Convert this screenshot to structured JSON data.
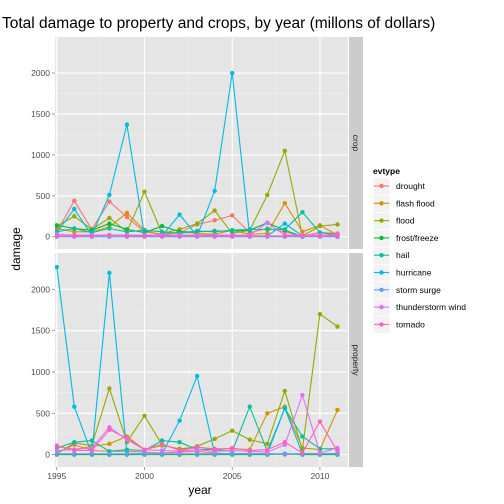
{
  "chart_data": {
    "type": "line",
    "title": "Total damage to property and crops, by year (millons of dollars)",
    "xlabel": "year",
    "ylabel": "damage",
    "legend_title": "evtype",
    "legend_position": "right",
    "grid": true,
    "facets": [
      "crop",
      "property"
    ],
    "xlim": [
      1994.9,
      2011.6
    ],
    "ylim": [
      -150,
      2440
    ],
    "x_ticks": [
      1995,
      2000,
      2005,
      2010
    ],
    "y_ticks": [
      0,
      500,
      1000,
      1500,
      2000
    ],
    "x": [
      1995,
      1996,
      1997,
      1998,
      1999,
      2000,
      2001,
      2002,
      2003,
      2004,
      2005,
      2006,
      2007,
      2008,
      2009,
      2010,
      2011
    ],
    "series": [
      {
        "name": "drought",
        "color": "#F8766D",
        "crop": [
          60,
          440,
          90,
          430,
          240,
          60,
          30,
          50,
          150,
          200,
          260,
          50,
          100,
          60,
          10,
          50,
          40
        ],
        "property": [
          20,
          120,
          50,
          40,
          40,
          30,
          20,
          30,
          40,
          20,
          10,
          10,
          10,
          0,
          10,
          10,
          10
        ]
      },
      {
        "name": "flash flood",
        "color": "#D39200",
        "crop": [
          100,
          60,
          60,
          120,
          290,
          80,
          20,
          60,
          40,
          30,
          80,
          30,
          40,
          410,
          60,
          140,
          20
        ],
        "property": [
          100,
          60,
          100,
          130,
          220,
          60,
          110,
          70,
          90,
          70,
          70,
          60,
          500,
          580,
          80,
          60,
          540
        ]
      },
      {
        "name": "flood",
        "color": "#93AA00",
        "crop": [
          130,
          250,
          90,
          230,
          60,
          550,
          40,
          90,
          160,
          320,
          40,
          80,
          510,
          1050,
          10,
          130,
          150
        ],
        "property": [
          10,
          140,
          110,
          800,
          150,
          470,
          120,
          60,
          100,
          190,
          290,
          180,
          130,
          770,
          60,
          1700,
          1550
        ]
      },
      {
        "name": "frost/freeze",
        "color": "#00BA38",
        "crop": [
          140,
          100,
          80,
          160,
          90,
          50,
          130,
          60,
          60,
          70,
          70,
          80,
          170,
          80,
          0,
          20,
          0
        ],
        "property": [
          0,
          0,
          0,
          0,
          0,
          0,
          0,
          0,
          0,
          0,
          0,
          0,
          0,
          10,
          0,
          0,
          0
        ]
      },
      {
        "name": "hail",
        "color": "#00C19F",
        "crop": [
          60,
          100,
          50,
          100,
          60,
          80,
          60,
          40,
          70,
          60,
          80,
          90,
          90,
          90,
          300,
          50,
          20
        ],
        "property": [
          80,
          150,
          170,
          40,
          60,
          50,
          170,
          150,
          60,
          60,
          40,
          580,
          40,
          560,
          220,
          70,
          70
        ]
      },
      {
        "name": "hurricane",
        "color": "#00B9E3",
        "crop": [
          50,
          340,
          20,
          510,
          1370,
          10,
          10,
          270,
          10,
          560,
          2000,
          10,
          10,
          160,
          10,
          10,
          10
        ],
        "property": [
          2270,
          580,
          10,
          2200,
          10,
          10,
          10,
          410,
          950,
          10,
          10,
          10,
          10,
          560,
          10,
          10,
          10
        ]
      },
      {
        "name": "storm surge",
        "color": "#619CFF",
        "crop": [
          0,
          0,
          0,
          0,
          0,
          0,
          0,
          0,
          0,
          0,
          0,
          0,
          0,
          0,
          0,
          0,
          0
        ],
        "property": [
          10,
          10,
          10,
          10,
          10,
          10,
          10,
          10,
          10,
          10,
          10,
          10,
          10,
          10,
          10,
          10,
          10
        ]
      },
      {
        "name": "thunderstorm wind",
        "color": "#DB72FB",
        "crop": [
          30,
          20,
          20,
          20,
          20,
          20,
          20,
          20,
          20,
          20,
          20,
          20,
          170,
          20,
          20,
          20,
          20
        ],
        "property": [
          50,
          60,
          80,
          330,
          180,
          60,
          50,
          40,
          60,
          40,
          50,
          40,
          30,
          120,
          720,
          20,
          80
        ]
      },
      {
        "name": "tornado",
        "color": "#FF61C3",
        "crop": [
          10,
          10,
          10,
          20,
          10,
          10,
          10,
          10,
          10,
          10,
          10,
          10,
          10,
          10,
          10,
          10,
          10
        ],
        "property": [
          110,
          50,
          50,
          300,
          200,
          60,
          130,
          50,
          90,
          60,
          80,
          50,
          60,
          150,
          20,
          400,
          40
        ]
      }
    ]
  }
}
